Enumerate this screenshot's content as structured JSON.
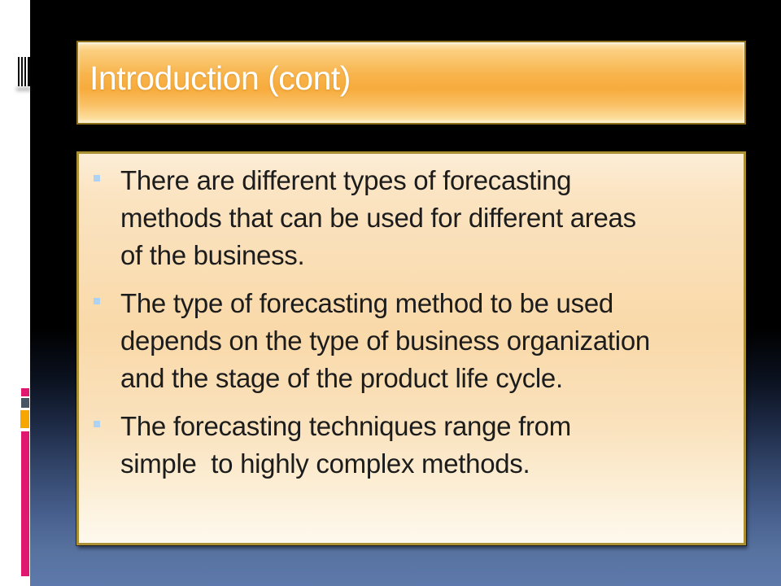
{
  "slide": {
    "title": "Introduction (cont)",
    "bullets": [
      {
        "lines": [
          "There are different types of forecasting",
          "methods that can be used for different areas",
          "of the business."
        ]
      },
      {
        "lines": [
          "The type of forecasting method to be used",
          "depends on the type of business organization",
          "and the stage of the product life cycle."
        ]
      },
      {
        "lines": [
          "The forecasting techniques range from",
          "simple  to highly complex methods."
        ]
      }
    ]
  },
  "theme": {
    "title_bar_orange": "#f7ab3c",
    "title_bar_border_gold": "#8f701c",
    "content_box_cream_top": "#fdeed8",
    "content_box_cream_mid": "#f9d9a9",
    "content_box_border_gold": "#ab8f33",
    "bullet_marker_blue": "#aed3f2",
    "body_text_color": "#1c1c1c",
    "title_text_color": "#ffffff",
    "footer_slate_blue": "#5d79ab",
    "left_strip_white": "#ffffff",
    "deco_pink": "#e0176f",
    "deco_gray": "#475565",
    "deco_amber": "#f7a600"
  }
}
